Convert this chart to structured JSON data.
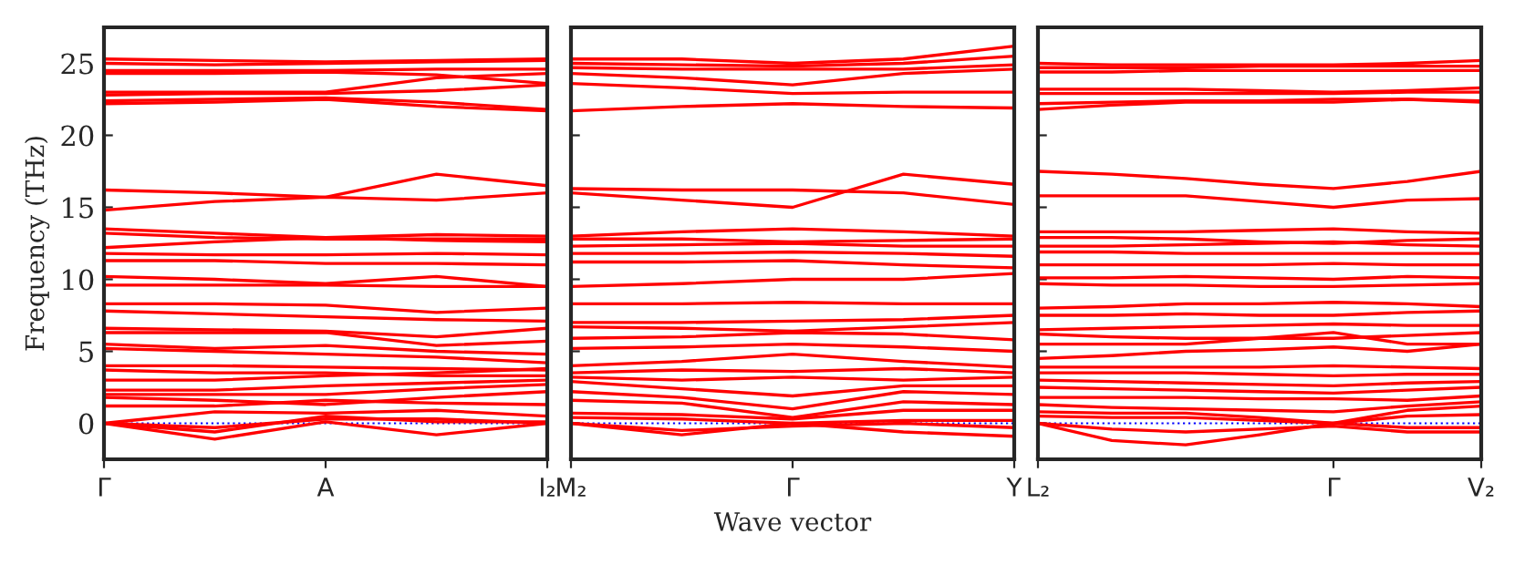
{
  "chart_data": [
    {
      "type": "line",
      "ylabel": "Frequency (THz)",
      "categories": [
        "Γ",
        null,
        "A",
        null,
        "I₂"
      ],
      "ylim": [
        -2.5,
        27.5
      ],
      "yticks": [
        0,
        5,
        10,
        15,
        20,
        25
      ],
      "ref_lines": [
        {
          "axis": "y",
          "value": 0,
          "color": "#0000ff",
          "line_style": "dotted"
        }
      ],
      "series": [
        {
          "color": "#ff0000",
          "values": [
            25.3,
            25.2,
            25.1,
            25.2,
            25.3
          ]
        },
        {
          "color": "#ff0000",
          "values": [
            25.0,
            24.9,
            25.0,
            25.1,
            25.2
          ]
        },
        {
          "color": "#ff0000",
          "values": [
            24.5,
            24.5,
            24.5,
            24.6,
            24.6
          ]
        },
        {
          "color": "#ff0000",
          "values": [
            24.3,
            24.3,
            24.4,
            24.2,
            23.6
          ]
        },
        {
          "color": "#ff0000",
          "values": [
            23.0,
            23.0,
            23.0,
            24.0,
            24.3
          ]
        },
        {
          "color": "#ff0000",
          "values": [
            22.8,
            22.9,
            22.9,
            23.1,
            23.5
          ]
        },
        {
          "color": "#ff0000",
          "values": [
            22.4,
            22.5,
            22.6,
            22.3,
            21.8
          ]
        },
        {
          "color": "#ff0000",
          "values": [
            22.2,
            22.3,
            22.5,
            22.0,
            21.7
          ]
        },
        {
          "color": "#ff0000",
          "values": [
            16.2,
            16.0,
            15.7,
            17.3,
            16.5
          ]
        },
        {
          "color": "#ff0000",
          "values": [
            14.8,
            15.4,
            15.7,
            15.5,
            16.0
          ]
        },
        {
          "color": "#ff0000",
          "values": [
            13.5,
            13.2,
            12.9,
            13.1,
            13.0
          ]
        },
        {
          "color": "#ff0000",
          "values": [
            13.2,
            12.9,
            12.8,
            12.8,
            12.8
          ]
        },
        {
          "color": "#ff0000",
          "values": [
            12.2,
            12.6,
            12.9,
            12.7,
            12.6
          ]
        },
        {
          "color": "#ff0000",
          "values": [
            11.8,
            11.7,
            11.7,
            11.8,
            11.7
          ]
        },
        {
          "color": "#ff0000",
          "values": [
            11.3,
            11.3,
            11.1,
            11.1,
            11.0
          ]
        },
        {
          "color": "#ff0000",
          "values": [
            10.2,
            10.0,
            9.7,
            10.2,
            9.5
          ]
        },
        {
          "color": "#ff0000",
          "values": [
            9.6,
            9.6,
            9.6,
            9.5,
            9.5
          ]
        },
        {
          "color": "#ff0000",
          "values": [
            8.3,
            8.3,
            8.2,
            7.7,
            8.0
          ]
        },
        {
          "color": "#ff0000",
          "values": [
            7.8,
            7.6,
            7.4,
            7.2,
            7.1
          ]
        },
        {
          "color": "#ff0000",
          "values": [
            6.6,
            6.5,
            6.4,
            6.0,
            6.6
          ]
        },
        {
          "color": "#ff0000",
          "values": [
            6.3,
            6.3,
            6.3,
            5.4,
            5.7
          ]
        },
        {
          "color": "#ff0000",
          "values": [
            5.5,
            5.2,
            5.4,
            5.0,
            4.8
          ]
        },
        {
          "color": "#ff0000",
          "values": [
            5.2,
            5.0,
            4.8,
            4.6,
            4.2
          ]
        },
        {
          "color": "#ff0000",
          "values": [
            4.0,
            4.0,
            3.9,
            3.8,
            3.7
          ]
        },
        {
          "color": "#ff0000",
          "values": [
            3.7,
            3.5,
            3.5,
            3.3,
            3.3
          ]
        },
        {
          "color": "#ff0000",
          "values": [
            3.0,
            3.0,
            3.3,
            3.5,
            3.8
          ]
        },
        {
          "color": "#ff0000",
          "values": [
            2.3,
            2.3,
            2.6,
            2.8,
            3.0
          ]
        },
        {
          "color": "#ff0000",
          "values": [
            2.0,
            2.0,
            2.0,
            2.4,
            2.7
          ]
        },
        {
          "color": "#ff0000",
          "values": [
            1.8,
            1.6,
            1.3,
            1.8,
            2.2
          ]
        },
        {
          "color": "#ff0000",
          "values": [
            1.2,
            1.2,
            1.6,
            1.4,
            1.3
          ]
        },
        {
          "color": "#ff0000",
          "values": [
            0,
            0.8,
            0.7,
            0.9,
            0.5
          ]
        },
        {
          "color": "#ff0000",
          "values": [
            0,
            -0.6,
            0.5,
            0.1,
            0.1
          ]
        },
        {
          "color": "#ff0000",
          "values": [
            0,
            -0.3,
            0.3,
            0.3,
            0
          ]
        },
        {
          "color": "#ff0000",
          "values": [
            0,
            -1.1,
            0.1,
            -0.8,
            0
          ]
        }
      ]
    },
    {
      "type": "line",
      "xlabel": "Wave vector",
      "tick_labels": "x",
      "categories": [
        "M₂",
        null,
        "Γ",
        null,
        "Y"
      ],
      "ylim": [
        -2.5,
        27.5
      ],
      "yticks": [
        0,
        5,
        10,
        15,
        20,
        25
      ],
      "ref_lines": [
        {
          "axis": "y",
          "value": 0,
          "color": "#0000ff",
          "line_style": "dotted"
        }
      ],
      "series": [
        {
          "color": "#ff0000",
          "values": [
            25.3,
            25.3,
            25.0,
            25.3,
            26.2
          ]
        },
        {
          "color": "#ff0000",
          "values": [
            25.0,
            24.9,
            24.8,
            25.0,
            25.5
          ]
        },
        {
          "color": "#ff0000",
          "values": [
            24.7,
            24.6,
            24.6,
            24.6,
            24.9
          ]
        },
        {
          "color": "#ff0000",
          "values": [
            24.3,
            24.0,
            23.5,
            24.3,
            24.6
          ]
        },
        {
          "color": "#ff0000",
          "values": [
            23.6,
            23.3,
            22.9,
            23.0,
            23.0
          ]
        },
        {
          "color": "#ff0000",
          "values": [
            21.7,
            22.0,
            22.2,
            22.0,
            21.9
          ]
        },
        {
          "color": "#ff0000",
          "values": [
            16.3,
            16.2,
            16.2,
            16.0,
            15.2
          ]
        },
        {
          "color": "#ff0000",
          "values": [
            16.0,
            15.5,
            15.0,
            17.3,
            16.6
          ]
        },
        {
          "color": "#ff0000",
          "values": [
            13.0,
            13.3,
            13.5,
            13.3,
            13.0
          ]
        },
        {
          "color": "#ff0000",
          "values": [
            12.8,
            12.8,
            12.6,
            12.7,
            12.8
          ]
        },
        {
          "color": "#ff0000",
          "values": [
            12.3,
            12.4,
            12.5,
            12.3,
            12.3
          ]
        },
        {
          "color": "#ff0000",
          "values": [
            11.8,
            11.8,
            11.9,
            11.8,
            11.6
          ]
        },
        {
          "color": "#ff0000",
          "values": [
            11.2,
            11.2,
            11.3,
            11.0,
            10.8
          ]
        },
        {
          "color": "#ff0000",
          "values": [
            9.5,
            9.7,
            10.0,
            10.0,
            10.4
          ]
        },
        {
          "color": "#ff0000",
          "values": [
            8.3,
            8.3,
            8.4,
            8.3,
            8.3
          ]
        },
        {
          "color": "#ff0000",
          "values": [
            7.0,
            7.0,
            7.1,
            7.2,
            7.5
          ]
        },
        {
          "color": "#ff0000",
          "values": [
            6.7,
            6.6,
            6.4,
            6.7,
            7.0
          ]
        },
        {
          "color": "#ff0000",
          "values": [
            5.9,
            6.0,
            6.3,
            6.2,
            5.8
          ]
        },
        {
          "color": "#ff0000",
          "values": [
            5.2,
            5.3,
            5.5,
            5.3,
            5.0
          ]
        },
        {
          "color": "#ff0000",
          "values": [
            4.0,
            4.3,
            4.8,
            4.3,
            3.9
          ]
        },
        {
          "color": "#ff0000",
          "values": [
            3.5,
            3.7,
            3.6,
            3.8,
            3.5
          ]
        },
        {
          "color": "#ff0000",
          "values": [
            3.2,
            3.0,
            3.2,
            3.0,
            3.2
          ]
        },
        {
          "color": "#ff0000",
          "values": [
            2.9,
            2.4,
            1.9,
            2.6,
            2.6
          ]
        },
        {
          "color": "#ff0000",
          "values": [
            2.2,
            1.8,
            1.0,
            2.2,
            2.0
          ]
        },
        {
          "color": "#ff0000",
          "values": [
            1.6,
            1.4,
            0.4,
            1.5,
            1.3
          ]
        },
        {
          "color": "#ff0000",
          "values": [
            0.7,
            0.6,
            0.3,
            0.9,
            0.9
          ]
        },
        {
          "color": "#ff0000",
          "values": [
            0.4,
            0.3,
            0,
            0.2,
            0.2
          ]
        },
        {
          "color": "#ff0000",
          "values": [
            0,
            -0.8,
            0,
            -0.6,
            -0.9
          ]
        },
        {
          "color": "#ff0000",
          "values": [
            0,
            -0.5,
            -0.2,
            0,
            -0.3
          ]
        }
      ]
    },
    {
      "type": "line",
      "tick_labels": "x",
      "categories": [
        "L₂",
        null,
        null,
        null,
        "Γ",
        null,
        "V₂"
      ],
      "ylim": [
        -2.5,
        27.5
      ],
      "yticks": [
        0,
        5,
        10,
        15,
        20,
        25
      ],
      "ref_lines": [
        {
          "axis": "y",
          "value": 0,
          "color": "#0000ff",
          "line_style": "dotted"
        }
      ],
      "series": [
        {
          "color": "#ff0000",
          "values": [
            25.0,
            24.9,
            24.9,
            24.9,
            24.9,
            25.0,
            25.2
          ]
        },
        {
          "color": "#ff0000",
          "values": [
            24.7,
            24.7,
            24.7,
            24.8,
            24.8,
            24.8,
            24.8
          ]
        },
        {
          "color": "#ff0000",
          "values": [
            24.4,
            24.4,
            24.5,
            24.5,
            24.5,
            24.5,
            24.5
          ]
        },
        {
          "color": "#ff0000",
          "values": [
            23.2,
            23.2,
            23.2,
            23.1,
            23.0,
            23.1,
            23.3
          ]
        },
        {
          "color": "#ff0000",
          "values": [
            22.9,
            22.9,
            22.9,
            22.9,
            22.9,
            23.0,
            23.0
          ]
        },
        {
          "color": "#ff0000",
          "values": [
            22.2,
            22.3,
            22.4,
            22.4,
            22.5,
            22.5,
            22.4
          ]
        },
        {
          "color": "#ff0000",
          "values": [
            21.8,
            22.1,
            22.3,
            22.3,
            22.3,
            22.5,
            22.3
          ]
        },
        {
          "color": "#ff0000",
          "values": [
            17.5,
            17.3,
            17.0,
            16.6,
            16.3,
            16.8,
            17.5
          ]
        },
        {
          "color": "#ff0000",
          "values": [
            15.8,
            15.8,
            15.8,
            15.4,
            15.0,
            15.5,
            15.6
          ]
        },
        {
          "color": "#ff0000",
          "values": [
            13.3,
            13.3,
            13.3,
            13.4,
            13.5,
            13.3,
            13.2
          ]
        },
        {
          "color": "#ff0000",
          "values": [
            12.9,
            12.9,
            12.8,
            12.6,
            12.5,
            12.7,
            12.8
          ]
        },
        {
          "color": "#ff0000",
          "values": [
            12.3,
            12.3,
            12.4,
            12.5,
            12.6,
            12.4,
            12.3
          ]
        },
        {
          "color": "#ff0000",
          "values": [
            11.9,
            11.9,
            11.8,
            11.8,
            11.8,
            11.8,
            11.8
          ]
        },
        {
          "color": "#ff0000",
          "values": [
            11.0,
            11.0,
            11.0,
            11.0,
            11.1,
            11.0,
            11.0
          ]
        },
        {
          "color": "#ff0000",
          "values": [
            10.1,
            10.1,
            10.2,
            10.1,
            10.0,
            10.2,
            10.1
          ]
        },
        {
          "color": "#ff0000",
          "values": [
            9.7,
            9.6,
            9.6,
            9.5,
            9.5,
            9.6,
            9.7
          ]
        },
        {
          "color": "#ff0000",
          "values": [
            8.0,
            8.1,
            8.3,
            8.3,
            8.4,
            8.3,
            8.1
          ]
        },
        {
          "color": "#ff0000",
          "values": [
            7.5,
            7.5,
            7.6,
            7.5,
            7.5,
            7.7,
            7.8
          ]
        },
        {
          "color": "#ff0000",
          "values": [
            6.5,
            6.6,
            6.7,
            6.8,
            6.9,
            6.8,
            6.8
          ]
        },
        {
          "color": "#ff0000",
          "values": [
            6.2,
            6.0,
            5.9,
            5.9,
            5.9,
            6.1,
            6.3
          ]
        },
        {
          "color": "#ff0000",
          "values": [
            5.5,
            5.5,
            5.5,
            5.9,
            6.3,
            5.5,
            5.5
          ]
        },
        {
          "color": "#ff0000",
          "values": [
            4.5,
            4.7,
            5.0,
            5.1,
            5.3,
            5.0,
            5.5
          ]
        },
        {
          "color": "#ff0000",
          "values": [
            3.9,
            3.9,
            3.9,
            3.9,
            4.0,
            3.9,
            3.8
          ]
        },
        {
          "color": "#ff0000",
          "values": [
            3.5,
            3.5,
            3.5,
            3.4,
            3.3,
            3.4,
            3.4
          ]
        },
        {
          "color": "#ff0000",
          "values": [
            3.0,
            2.9,
            2.8,
            2.7,
            2.6,
            2.8,
            2.9
          ]
        },
        {
          "color": "#ff0000",
          "values": [
            2.5,
            2.4,
            2.3,
            2.2,
            2.1,
            2.3,
            2.5
          ]
        },
        {
          "color": "#ff0000",
          "values": [
            1.8,
            1.8,
            1.8,
            1.7,
            1.7,
            1.6,
            1.9
          ]
        },
        {
          "color": "#ff0000",
          "values": [
            1.3,
            1.1,
            1.0,
            0.9,
            0.8,
            1.2,
            1.5
          ]
        },
        {
          "color": "#ff0000",
          "values": [
            0.8,
            0.7,
            0.7,
            0.4,
            0,
            0.9,
            1.2
          ]
        },
        {
          "color": "#ff0000",
          "values": [
            0.5,
            0.4,
            0.4,
            0.2,
            0,
            0.5,
            0.6
          ]
        },
        {
          "color": "#ff0000",
          "values": [
            0,
            -1.2,
            -1.5,
            -0.8,
            0,
            -0.3,
            -0.3
          ]
        },
        {
          "color": "#ff0000",
          "values": [
            0,
            -0.4,
            -0.6,
            -0.4,
            -0.2,
            -0.6,
            -0.6
          ]
        }
      ]
    }
  ]
}
